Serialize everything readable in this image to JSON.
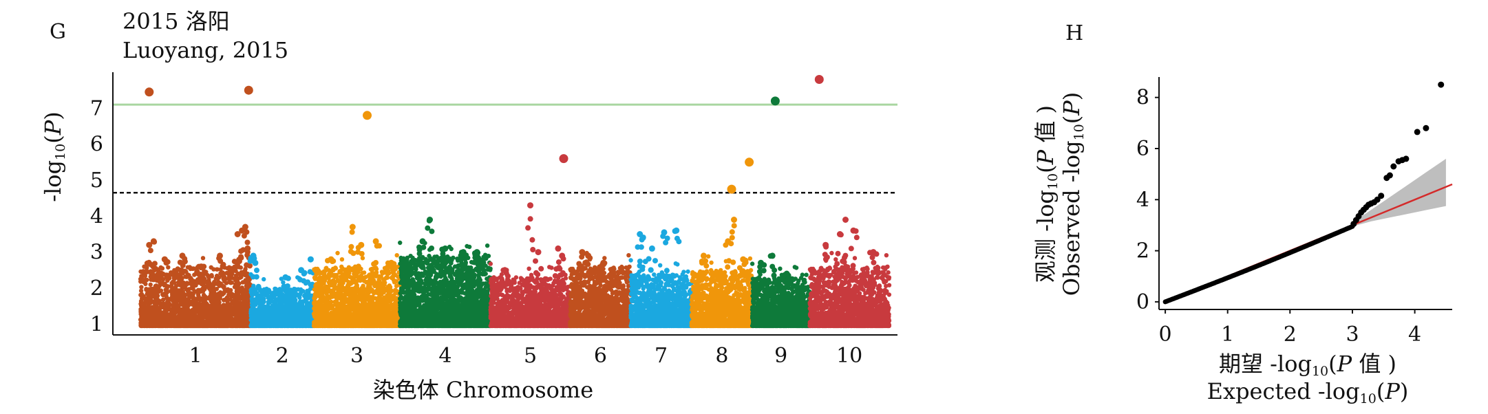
{
  "chart_data": [
    {
      "type": "scatter",
      "subtype": "manhattan",
      "panel_label": "G",
      "title_cn": "2015 洛阳",
      "title_en": "Luoyang, 2015",
      "xlabel": "染色体 Chromosome",
      "ylabel": {
        "prefix": "-log",
        "sub": "10",
        "paren_open": "(",
        "var": "P",
        "paren_close": ")"
      },
      "categories": [
        "1",
        "2",
        "3",
        "4",
        "5",
        "6",
        "7",
        "8",
        "9",
        "10"
      ],
      "ylim": [
        0.7,
        8.0
      ],
      "yticks": [
        1,
        2,
        3,
        4,
        5,
        6,
        7
      ],
      "thresholds": [
        {
          "value": 7.1,
          "style": "solid",
          "color": "#a9d6a0"
        },
        {
          "value": 4.65,
          "style": "dashed",
          "color": "#111111"
        }
      ],
      "chromosomes": [
        {
          "name": "1",
          "color": "#c0501e",
          "n": 2600,
          "base_max": 2.6,
          "peaks": [
            [
              0.08,
              3.2
            ],
            [
              0.12,
              3.3
            ],
            [
              0.22,
              2.8
            ],
            [
              0.38,
              2.9
            ],
            [
              0.55,
              2.6
            ],
            [
              0.72,
              2.9
            ],
            [
              0.88,
              3.5
            ],
            [
              0.92,
              3.6
            ],
            [
              0.95,
              3.7
            ],
            [
              0.97,
              3.1
            ]
          ],
          "top_points": [
            [
              0.08,
              7.45
            ],
            [
              0.98,
              7.5
            ]
          ]
        },
        {
          "name": "2",
          "color": "#1ba8e0",
          "n": 1500,
          "base_max": 2.0,
          "peaks": [
            [
              0.04,
              2.9
            ],
            [
              0.07,
              2.7
            ],
            [
              0.55,
              2.3
            ],
            [
              0.8,
              2.5
            ],
            [
              0.95,
              2.8
            ]
          ],
          "top_points": []
        },
        {
          "name": "3",
          "color": "#f0960a",
          "n": 2300,
          "base_max": 2.6,
          "peaks": [
            [
              0.2,
              2.8
            ],
            [
              0.45,
              3.7
            ],
            [
              0.55,
              3.2
            ],
            [
              0.72,
              3.3
            ],
            [
              0.9,
              2.7
            ]
          ],
          "top_points": [
            [
              0.62,
              6.8
            ]
          ]
        },
        {
          "name": "4",
          "color": "#0e7a3a",
          "n": 3200,
          "base_max": 2.9,
          "peaks": [
            [
              0.25,
              3.3
            ],
            [
              0.33,
              3.9
            ],
            [
              0.5,
              3.1
            ],
            [
              0.7,
              3.0
            ],
            [
              0.85,
              3.0
            ]
          ],
          "top_points": []
        },
        {
          "name": "5",
          "color": "#c83a3e",
          "n": 1900,
          "base_max": 2.3,
          "peaks": [
            [
              0.18,
              2.5
            ],
            [
              0.5,
              4.3
            ],
            [
              0.6,
              3.0
            ],
            [
              0.85,
              3.1
            ],
            [
              0.9,
              2.9
            ]
          ],
          "top_points": [
            [
              0.92,
              5.6
            ]
          ]
        },
        {
          "name": "6",
          "color": "#c0501e",
          "n": 1700,
          "base_max": 2.6,
          "peaks": [
            [
              0.2,
              3.0
            ],
            [
              0.3,
              2.9
            ],
            [
              0.55,
              2.7
            ]
          ],
          "top_points": []
        },
        {
          "name": "7",
          "color": "#1ba8e0",
          "n": 1600,
          "base_max": 2.4,
          "peaks": [
            [
              0.15,
              3.5
            ],
            [
              0.2,
              3.4
            ],
            [
              0.35,
              3.1
            ],
            [
              0.55,
              3.55
            ],
            [
              0.75,
              3.6
            ]
          ],
          "top_points": []
        },
        {
          "name": "8",
          "color": "#f0960a",
          "n": 1700,
          "base_max": 2.5,
          "peaks": [
            [
              0.2,
              2.9
            ],
            [
              0.6,
              3.3
            ],
            [
              0.7,
              3.9
            ],
            [
              0.85,
              2.8
            ]
          ],
          "top_points": [
            [
              0.66,
              4.75
            ],
            [
              0.95,
              5.5
            ]
          ]
        },
        {
          "name": "9",
          "color": "#0e7a3a",
          "n": 1600,
          "base_max": 2.3,
          "peaks": [
            [
              0.15,
              2.7
            ],
            [
              0.35,
              2.9
            ],
            [
              0.6,
              2.4
            ]
          ],
          "top_points": [
            [
              0.4,
              7.2
            ]
          ]
        },
        {
          "name": "10",
          "color": "#c83a3e",
          "n": 2000,
          "base_max": 2.6,
          "peaks": [
            [
              0.2,
              3.2
            ],
            [
              0.38,
              3.5
            ],
            [
              0.45,
              3.9
            ],
            [
              0.55,
              3.6
            ],
            [
              0.8,
              3.0
            ]
          ],
          "top_points": [
            [
              0.12,
              7.8
            ]
          ]
        }
      ]
    },
    {
      "type": "scatter",
      "subtype": "qq",
      "panel_label": "H",
      "xlabel_cn": {
        "prefix": "期望 -log",
        "sub": "10",
        "paren_open": "(",
        "var": "P",
        "suffix": " 值 )"
      },
      "xlabel_en": {
        "prefix": "Expected -log",
        "sub": "10",
        "paren_open": "(",
        "var": "P",
        "suffix": ")"
      },
      "ylabel_cn": {
        "prefix": "观测 -log",
        "sub": "10",
        "paren_open": "(",
        "var": "P",
        "suffix": " 值 )"
      },
      "ylabel_en": {
        "prefix": "Observed -log",
        "sub": "10",
        "paren_open": "(",
        "var": "P",
        "suffix": ")"
      },
      "xticks": [
        0,
        1,
        2,
        3,
        4
      ],
      "yticks": [
        0,
        2,
        4,
        6,
        8
      ],
      "xlim": [
        -0.1,
        4.6
      ],
      "ylim": [
        -0.3,
        8.8
      ],
      "reference_line": {
        "color": "#d42a2a",
        "from": [
          0.0,
          0.0
        ],
        "to": [
          4.6,
          4.6
        ]
      },
      "confidence_band": {
        "color": "#b3b3b3",
        "x": [
          3.0,
          3.3,
          3.6,
          3.9,
          4.2,
          4.5
        ],
        "low": [
          2.95,
          3.15,
          3.3,
          3.45,
          3.6,
          3.75
        ],
        "high": [
          3.1,
          3.6,
          4.1,
          4.6,
          5.1,
          5.6
        ]
      },
      "points": [
        [
          3.02,
          3.05
        ],
        [
          3.06,
          3.2
        ],
        [
          3.1,
          3.35
        ],
        [
          3.14,
          3.5
        ],
        [
          3.18,
          3.6
        ],
        [
          3.22,
          3.7
        ],
        [
          3.26,
          3.8
        ],
        [
          3.3,
          3.85
        ],
        [
          3.35,
          3.9
        ],
        [
          3.4,
          4.0
        ],
        [
          3.46,
          4.15
        ],
        [
          3.55,
          4.85
        ],
        [
          3.6,
          4.95
        ],
        [
          3.66,
          5.3
        ],
        [
          3.74,
          5.5
        ],
        [
          3.8,
          5.55
        ],
        [
          3.86,
          5.6
        ],
        [
          4.04,
          6.65
        ],
        [
          4.18,
          6.8
        ],
        [
          4.42,
          8.5
        ]
      ],
      "low_points_end": [
        3.0,
        2.95
      ]
    }
  ]
}
